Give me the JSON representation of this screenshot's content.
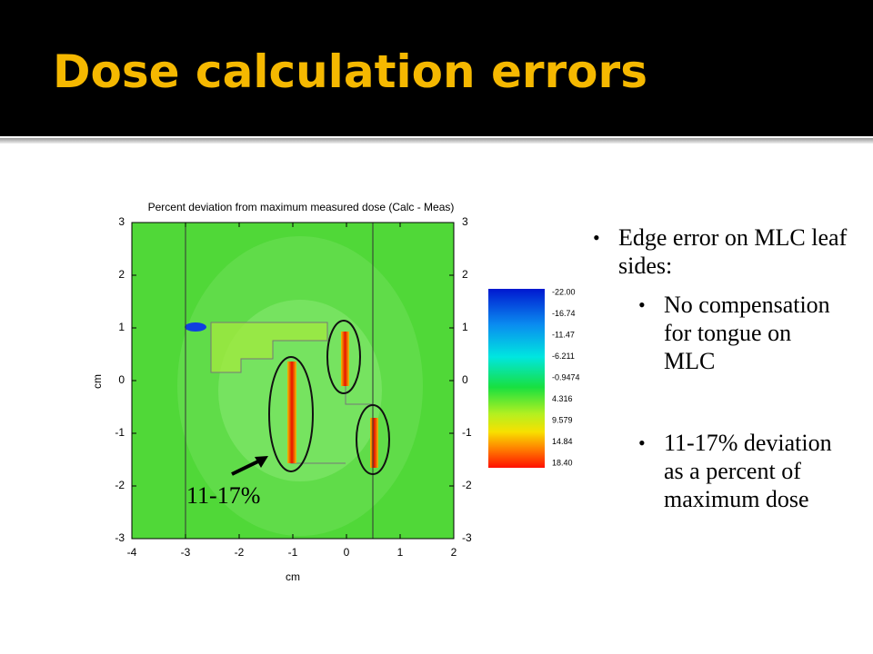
{
  "header": {
    "title": "Dose calculation errors"
  },
  "figure": {
    "title": "Percent deviation from maximum measured dose (Calc - Meas)",
    "x_label": "cm",
    "y_label": "cm",
    "xlim": [
      -4,
      2
    ],
    "ylim": [
      -3,
      3
    ],
    "xticks": [
      -4,
      -3,
      -2,
      -1,
      0,
      1,
      2
    ],
    "yticks": [
      -3,
      -2,
      -1,
      0,
      1,
      2,
      3
    ],
    "colorbar_labels": [
      "-22.00",
      "-16.74",
      "-11.47",
      "-6.211",
      "-0.9474",
      "4.316",
      "9.579",
      "14.84",
      "18.40"
    ],
    "annotation": "11-17%"
  },
  "bullets": [
    {
      "text": "Edge error on MLC leaf sides:",
      "sub": [
        "No compensation for tongue on MLC",
        "11-17% deviation as a percent of maximum dose"
      ]
    }
  ]
}
